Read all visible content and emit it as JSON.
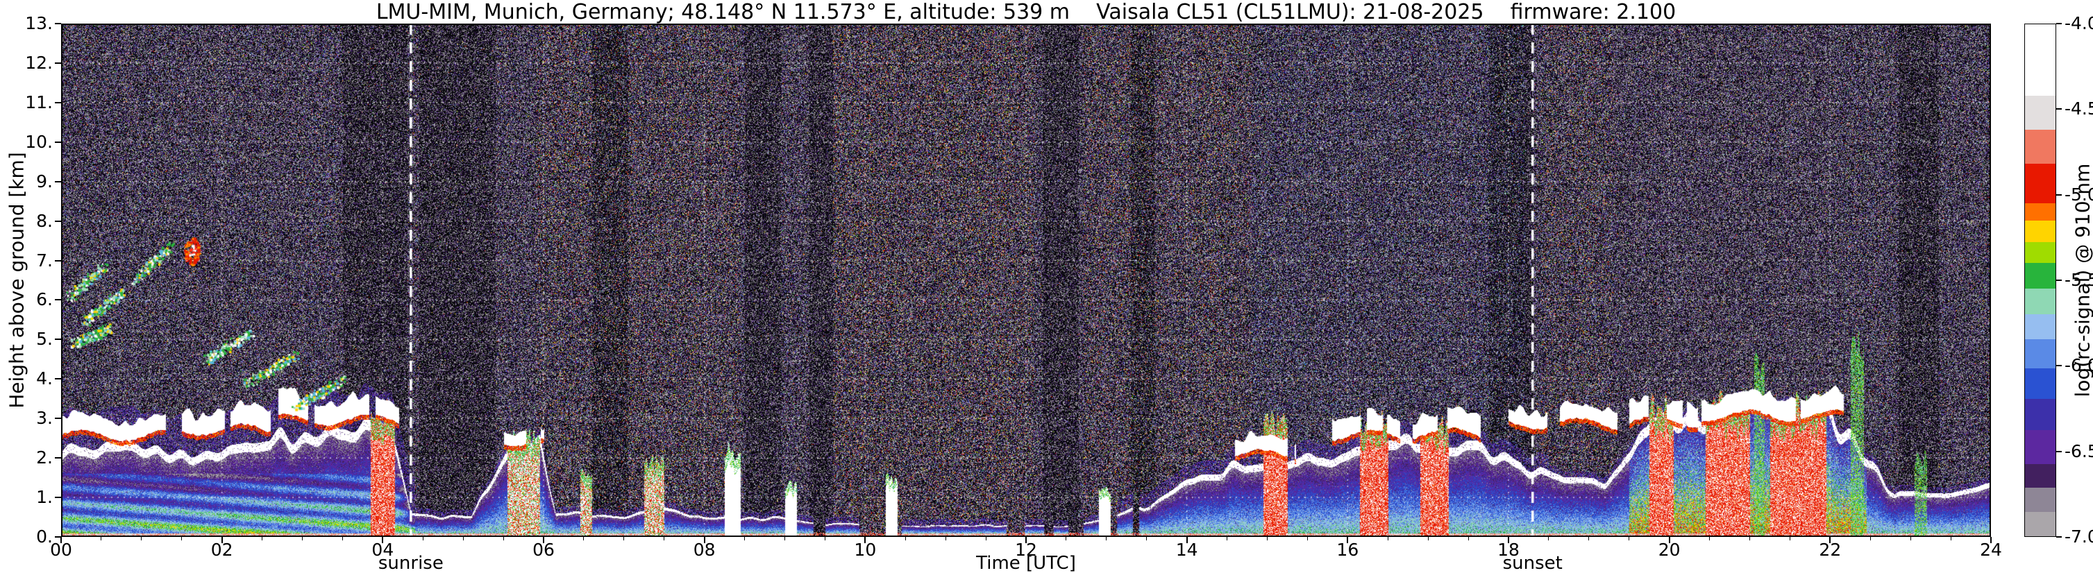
{
  "title": "LMU-MIM, Munich, Germany; 48.148° N 11.573° E, altitude: 539 m    Vaisala CL51 (CL51LMU): 21-08-2025    firmware: 2.100",
  "chart_data": {
    "type": "heatmap",
    "title": "LMU-MIM, Munich, Germany; 48.148° N 11.573° E, altitude: 539 m    Vaisala CL51 (CL51LMU): 21-08-2025    firmware: 2.100",
    "xlabel": "Time [UTC]",
    "ylabel": "Height above ground [km]",
    "xlim": [
      0,
      24
    ],
    "ylim": [
      0,
      13
    ],
    "grid": "white dotted, vertical every 2 h, horizontal every 1 km",
    "x_ticks": [
      {
        "t": 0,
        "label": "00"
      },
      {
        "t": 2,
        "label": "02"
      },
      {
        "t": 4,
        "label": "04"
      },
      {
        "t": 6,
        "label": "06"
      },
      {
        "t": 8,
        "label": "08"
      },
      {
        "t": 10,
        "label": "10"
      },
      {
        "t": 12,
        "label": "12"
      },
      {
        "t": 14,
        "label": "14"
      },
      {
        "t": 16,
        "label": "16"
      },
      {
        "t": 18,
        "label": "18"
      },
      {
        "t": 20,
        "label": "20"
      },
      {
        "t": 22,
        "label": "22"
      },
      {
        "t": 24,
        "label": "24"
      }
    ],
    "y_ticks": [
      {
        "v": 0,
        "label": "0."
      },
      {
        "v": 1,
        "label": "1."
      },
      {
        "v": 2,
        "label": "2."
      },
      {
        "v": 3,
        "label": "3."
      },
      {
        "v": 4,
        "label": "4."
      },
      {
        "v": 5,
        "label": "5."
      },
      {
        "v": 6,
        "label": "6."
      },
      {
        "v": 7,
        "label": "7."
      },
      {
        "v": 8,
        "label": "8."
      },
      {
        "v": 9,
        "label": "9."
      },
      {
        "v": 10,
        "label": "10."
      },
      {
        "v": 11,
        "label": "11."
      },
      {
        "v": 12,
        "label": "12."
      },
      {
        "v": 13,
        "label": "13."
      }
    ],
    "colorbar": {
      "label": "log(rc-signal) @ 910 nm",
      "range": [
        -7.0,
        -4.0
      ],
      "ticks": [
        {
          "v": -4.0,
          "label": "-4.0"
        },
        {
          "v": -4.5,
          "label": "-4.5"
        },
        {
          "v": -5.0,
          "label": "-5.0"
        },
        {
          "v": -5.5,
          "label": "-5.5"
        },
        {
          "v": -6.0,
          "label": "-6.0"
        },
        {
          "v": -6.5,
          "label": "-6.5"
        },
        {
          "v": -7.0,
          "label": "-7.0"
        }
      ],
      "segments": [
        {
          "from": -4.0,
          "to": -4.42,
          "color": "#ffffff"
        },
        {
          "from": -4.42,
          "to": -4.62,
          "color": "#e3dfdf"
        },
        {
          "from": -4.62,
          "to": -4.82,
          "color": "#f07860"
        },
        {
          "from": -4.82,
          "to": -5.05,
          "color": "#e81800"
        },
        {
          "from": -5.05,
          "to": -5.15,
          "color": "#ff7000"
        },
        {
          "from": -5.15,
          "to": -5.28,
          "color": "#ffd400"
        },
        {
          "from": -5.28,
          "to": -5.4,
          "color": "#a0dc00"
        },
        {
          "from": -5.4,
          "to": -5.55,
          "color": "#28b43c"
        },
        {
          "from": -5.55,
          "to": -5.7,
          "color": "#8fd8b4"
        },
        {
          "from": -5.7,
          "to": -5.85,
          "color": "#96bef0"
        },
        {
          "from": -5.85,
          "to": -6.02,
          "color": "#5a8ae6"
        },
        {
          "from": -6.02,
          "to": -6.2,
          "color": "#2a52d2"
        },
        {
          "from": -6.2,
          "to": -6.38,
          "color": "#3c30aa"
        },
        {
          "from": -6.38,
          "to": -6.58,
          "color": "#5c28a0"
        },
        {
          "from": -6.58,
          "to": -6.72,
          "color": "#42205f"
        },
        {
          "from": -6.72,
          "to": -6.86,
          "color": "#8e8696"
        },
        {
          "from": -6.86,
          "to": -7.0,
          "color": "#aaa6aa"
        }
      ]
    },
    "annotations": [
      {
        "type": "vline",
        "style": "dashed",
        "x": 4.35,
        "label": "sunrise"
      },
      {
        "type": "vline",
        "style": "dashed",
        "x": 18.3,
        "label": "sunset"
      }
    ],
    "features": {
      "boundary_layer_top_km": [
        [
          0,
          2.2
        ],
        [
          0.8,
          2.45
        ],
        [
          1.6,
          2.1
        ],
        [
          2.4,
          2.5
        ],
        [
          3.1,
          2.6
        ],
        [
          3.7,
          2.9
        ],
        [
          4.1,
          2.7
        ],
        [
          4.35,
          0.6
        ],
        [
          5.1,
          0.5
        ],
        [
          5.55,
          2.3
        ],
        [
          5.95,
          2.5
        ],
        [
          6.15,
          0.65
        ],
        [
          7.0,
          0.55
        ],
        [
          7.45,
          0.85
        ],
        [
          8.0,
          0.5
        ],
        [
          9.0,
          0.5
        ],
        [
          9.5,
          0.35
        ],
        [
          10.5,
          0.3
        ],
        [
          11.5,
          0.32
        ],
        [
          12.5,
          0.3
        ],
        [
          13.0,
          0.45
        ],
        [
          13.6,
          0.9
        ],
        [
          14.2,
          1.7
        ],
        [
          15.0,
          1.9
        ],
        [
          15.6,
          2.1
        ],
        [
          16.3,
          2.3
        ],
        [
          17.0,
          2.5
        ],
        [
          17.6,
          2.3
        ],
        [
          18.1,
          1.9
        ],
        [
          18.7,
          1.5
        ],
        [
          19.2,
          1.5
        ],
        [
          19.6,
          2.4
        ],
        [
          20.0,
          3.1
        ],
        [
          21.0,
          3.25
        ],
        [
          22.0,
          3.15
        ],
        [
          22.4,
          2.2
        ],
        [
          22.8,
          1.1
        ],
        [
          23.4,
          1.1
        ],
        [
          24,
          1.4
        ]
      ],
      "clouds": [
        {
          "t0": 0.0,
          "t1": 1.3,
          "h": 2.55,
          "thick": 0.45
        },
        {
          "t0": 1.5,
          "t1": 2.6,
          "h": 2.7,
          "thick": 0.5
        },
        {
          "t0": 2.7,
          "t1": 4.2,
          "h": 2.95,
          "thick": 0.55
        },
        {
          "t0": 5.5,
          "t1": 6.0,
          "h": 2.4,
          "thick": 0.3
        },
        {
          "t0": 14.5,
          "t1": 15.35,
          "h": 2.05,
          "thick": 0.4
        },
        {
          "t0": 15.8,
          "t1": 16.65,
          "h": 2.55,
          "thick": 0.5
        },
        {
          "t0": 16.8,
          "t1": 17.65,
          "h": 2.6,
          "thick": 0.45
        },
        {
          "t0": 18.0,
          "t1": 19.35,
          "h": 2.85,
          "thick": 0.4
        },
        {
          "t0": 19.5,
          "t1": 20.35,
          "h": 2.9,
          "thick": 0.5
        },
        {
          "t0": 20.4,
          "t1": 22.35,
          "h": 3.05,
          "thick": 0.5
        }
      ],
      "plumes": [
        {
          "t0": 3.85,
          "t1": 4.15,
          "top": 3.1,
          "color": "red"
        },
        {
          "t0": 5.55,
          "t1": 5.95,
          "top": 2.5,
          "color": "mixed"
        },
        {
          "t0": 6.45,
          "t1": 6.6,
          "top": 1.6,
          "color": "mixed"
        },
        {
          "t0": 7.25,
          "t1": 7.5,
          "top": 1.9,
          "color": "mixed"
        },
        {
          "t0": 8.25,
          "t1": 8.45,
          "top": 2.2,
          "color": "white"
        },
        {
          "t0": 9.0,
          "t1": 9.15,
          "top": 1.3,
          "color": "white"
        },
        {
          "t0": 10.25,
          "t1": 10.4,
          "top": 1.5,
          "color": "white"
        },
        {
          "t0": 12.9,
          "t1": 13.05,
          "top": 1.2,
          "color": "white"
        },
        {
          "t0": 14.95,
          "t1": 15.25,
          "top": 2.9,
          "color": "red"
        },
        {
          "t0": 16.15,
          "t1": 16.5,
          "top": 3.0,
          "color": "red"
        },
        {
          "t0": 16.9,
          "t1": 17.25,
          "top": 2.9,
          "color": "red"
        },
        {
          "t0": 19.75,
          "t1": 20.05,
          "top": 3.3,
          "color": "red"
        },
        {
          "t0": 20.45,
          "t1": 21.0,
          "top": 3.35,
          "color": "red"
        },
        {
          "t0": 21.25,
          "t1": 21.95,
          "top": 3.35,
          "color": "red"
        },
        {
          "t0": 20.78,
          "t1": 20.92,
          "top": 5.3,
          "color": "green"
        },
        {
          "t0": 21.05,
          "t1": 21.18,
          "top": 4.6,
          "color": "green"
        },
        {
          "t0": 22.25,
          "t1": 22.42,
          "top": 4.8,
          "color": "green"
        },
        {
          "t0": 23.05,
          "t1": 23.2,
          "top": 2.0,
          "color": "green"
        }
      ],
      "streaks": [
        {
          "t0": 0.1,
          "h0": 6.1,
          "t1": 0.55,
          "h1": 6.9
        },
        {
          "t0": 0.3,
          "h0": 5.5,
          "t1": 0.75,
          "h1": 6.2
        },
        {
          "t0": 0.9,
          "h0": 6.5,
          "t1": 1.35,
          "h1": 7.4
        },
        {
          "t0": 0.15,
          "h0": 4.9,
          "t1": 0.6,
          "h1": 5.3
        },
        {
          "t0": 1.8,
          "h0": 4.5,
          "t1": 2.35,
          "h1": 5.2
        },
        {
          "t0": 2.3,
          "h0": 3.9,
          "t1": 2.9,
          "h1": 4.6
        },
        {
          "t0": 2.9,
          "h0": 3.3,
          "t1": 3.5,
          "h1": 4.0
        }
      ],
      "blobs": [
        {
          "t": 1.62,
          "h": 7.25
        }
      ],
      "dark_columns": [
        [
          3.5,
          4.3
        ],
        [
          4.45,
          5.4
        ],
        [
          6.6,
          7.05
        ],
        [
          8.5,
          8.95
        ],
        [
          9.3,
          9.6
        ],
        [
          12.2,
          12.65
        ],
        [
          13.3,
          13.6
        ],
        [
          17.75,
          18.3
        ],
        [
          22.85,
          23.35
        ]
      ],
      "haze_columns": [
        {
          "t0": 5.9,
          "t1": 8.45,
          "warm": 0.5
        },
        {
          "t0": 9.6,
          "t1": 12.1,
          "warm": 0.55
        },
        {
          "t0": 12.7,
          "t1": 14.8,
          "warm": 0.5
        },
        {
          "t0": 14.8,
          "t1": 18.2,
          "warm": 0.15
        },
        {
          "t0": 18.4,
          "t1": 19.3,
          "warm": 0.45
        }
      ]
    }
  }
}
